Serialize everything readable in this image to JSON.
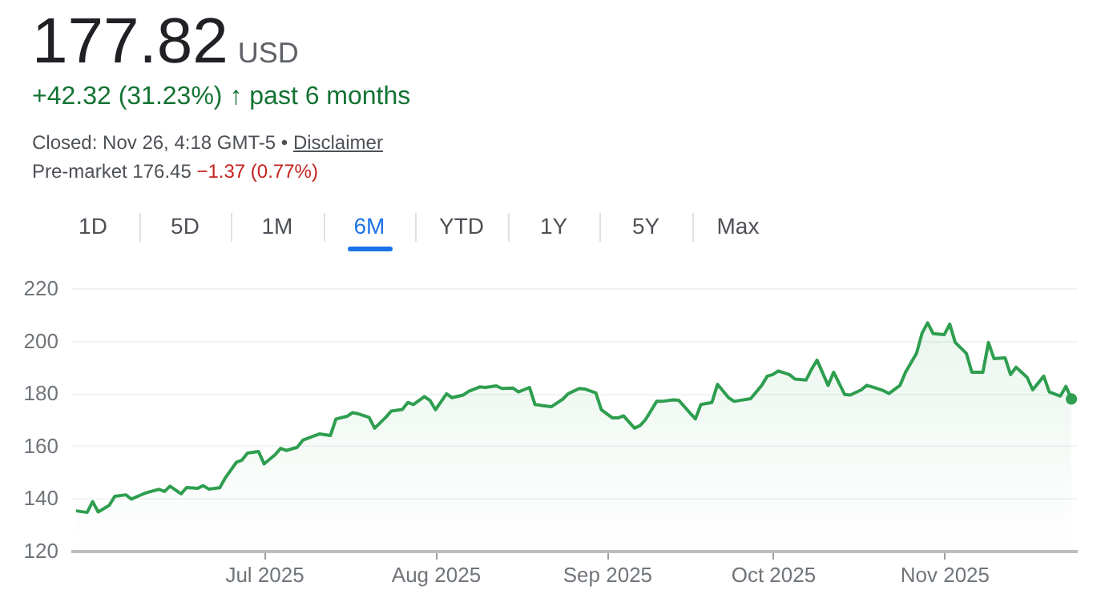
{
  "chart_data": {
    "type": "area",
    "title": "177.82",
    "subtitle": "USD",
    "annotations": [
      "+42.32 (31.23%) ↑ past 6 months",
      "Closed: Nov 26, 4:18 GMT-5 •",
      "Disclaimer",
      "Pre-market 176.45",
      "−1.37 (0.77%)",
      "1D",
      "5D",
      "1M",
      "6M",
      "YTD",
      "1Y",
      "5Y",
      "Max"
    ],
    "x": [
      "2025-05-28",
      "2025-05-30",
      "2025-05-31",
      "2025-06-01",
      "2025-06-03",
      "2025-06-04",
      "2025-06-06",
      "2025-06-07",
      "2025-06-09",
      "2025-06-10",
      "2025-06-12",
      "2025-06-13",
      "2025-06-14",
      "2025-06-16",
      "2025-06-17",
      "2025-06-19",
      "2025-06-20",
      "2025-06-21",
      "2025-06-23",
      "2025-06-24",
      "2025-06-26",
      "2025-06-27",
      "2025-06-28",
      "2025-06-30",
      "2025-07-01",
      "2025-07-03",
      "2025-07-04",
      "2025-07-05",
      "2025-07-07",
      "2025-07-08",
      "2025-07-10",
      "2025-07-11",
      "2025-07-13",
      "2025-07-14",
      "2025-07-16",
      "2025-07-17",
      "2025-07-18",
      "2025-07-20",
      "2025-07-21",
      "2025-07-23",
      "2025-07-24",
      "2025-07-26",
      "2025-07-27",
      "2025-07-28",
      "2025-07-30",
      "2025-07-31",
      "2025-08-01",
      "2025-08-03",
      "2025-08-04",
      "2025-08-06",
      "2025-08-07",
      "2025-08-09",
      "2025-08-10",
      "2025-08-12",
      "2025-08-13",
      "2025-08-15",
      "2025-08-16",
      "2025-08-18",
      "2025-08-19",
      "2025-08-21",
      "2025-08-22",
      "2025-08-24",
      "2025-08-25",
      "2025-08-27",
      "2025-08-28",
      "2025-08-30",
      "2025-08-31",
      "2025-09-02",
      "2025-09-03",
      "2025-09-04",
      "2025-09-06",
      "2025-09-07",
      "2025-09-08",
      "2025-09-10",
      "2025-09-11",
      "2025-09-13",
      "2025-09-14",
      "2025-09-17",
      "2025-09-18",
      "2025-09-20",
      "2025-09-21",
      "2025-09-23",
      "2025-09-24",
      "2025-09-27",
      "2025-09-29",
      "2025-09-30",
      "2025-10-01",
      "2025-10-02",
      "2025-10-04",
      "2025-10-05",
      "2025-10-07",
      "2025-10-08",
      "2025-10-09",
      "2025-10-11",
      "2025-10-12",
      "2025-10-14",
      "2025-10-15",
      "2025-10-17",
      "2025-10-18",
      "2025-10-19",
      "2025-10-21",
      "2025-10-22",
      "2025-10-24",
      "2025-10-25",
      "2025-10-27",
      "2025-10-28",
      "2025-10-29",
      "2025-10-30",
      "2025-11-01",
      "2025-11-02",
      "2025-11-03",
      "2025-11-05",
      "2025-11-06",
      "2025-11-08",
      "2025-11-09",
      "2025-11-10",
      "2025-11-12",
      "2025-11-13",
      "2025-11-14",
      "2025-11-16",
      "2025-11-17",
      "2025-11-19",
      "2025-11-20",
      "2025-11-22",
      "2025-11-23",
      "2025-11-24"
    ],
    "series": [
      {
        "color": "#2e9e4f",
        "values": [
          135.2,
          134.6,
          138.7,
          134.8,
          137.3,
          140.7,
          141.3,
          139.7,
          141.5,
          142.3,
          143.4,
          142.6,
          144.6,
          141.7,
          144.1,
          143.8,
          144.8,
          143.5,
          144,
          147.8,
          153.7,
          154.5,
          157.2,
          157.8,
          153.1,
          156.6,
          159,
          158.2,
          159.4,
          162.1,
          163.7,
          164.5,
          163.9,
          170.2,
          171.2,
          172.6,
          172.2,
          170.8,
          166.7,
          170.8,
          173.2,
          173.8,
          176.5,
          175.7,
          178.7,
          177.3,
          173.7,
          179.8,
          178.3,
          179.3,
          180.7,
          182.4,
          182.2,
          182.8,
          181.8,
          182,
          180.5,
          182.2,
          175.7,
          175.1,
          174.9,
          177.7,
          179.8,
          181.8,
          181.6,
          180.1,
          173.7,
          170.6,
          170.6,
          171.4,
          166.7,
          167.7,
          170,
          176.9,
          176.9,
          177.5,
          177.3,
          170.2,
          175.7,
          176.5,
          183.4,
          178.3,
          176.9,
          177.9,
          183,
          186.5,
          187.1,
          188.5,
          187.1,
          185.4,
          185,
          189.1,
          192.6,
          183,
          188,
          179.5,
          179.3,
          181.3,
          183,
          182.4,
          181,
          179.9,
          183,
          188,
          195.2,
          202.9,
          206.8,
          202.7,
          202.3,
          206.3,
          199.3,
          195.2,
          188,
          188,
          199.3,
          193.2,
          193.5,
          187.1,
          189.9,
          186,
          181.3,
          186.5,
          180.5,
          178.9,
          182.6,
          177.8
        ]
      }
    ],
    "xlim": [
      "2025-05-27",
      "2025-11-25"
    ],
    "xticks": [
      {
        "value": "2025-07-01",
        "label": "Jul 2025"
      },
      {
        "value": "2025-08-01",
        "label": "Aug 2025"
      },
      {
        "value": "2025-09-01",
        "label": "Sep 2025"
      },
      {
        "value": "2025-10-01",
        "label": "Oct 2025"
      },
      {
        "value": "2025-11-01",
        "label": "Nov 2025"
      }
    ],
    "ylim": [
      120,
      220
    ],
    "yticks": [
      120,
      140,
      160,
      180,
      200,
      220
    ],
    "grid": "y"
  }
}
